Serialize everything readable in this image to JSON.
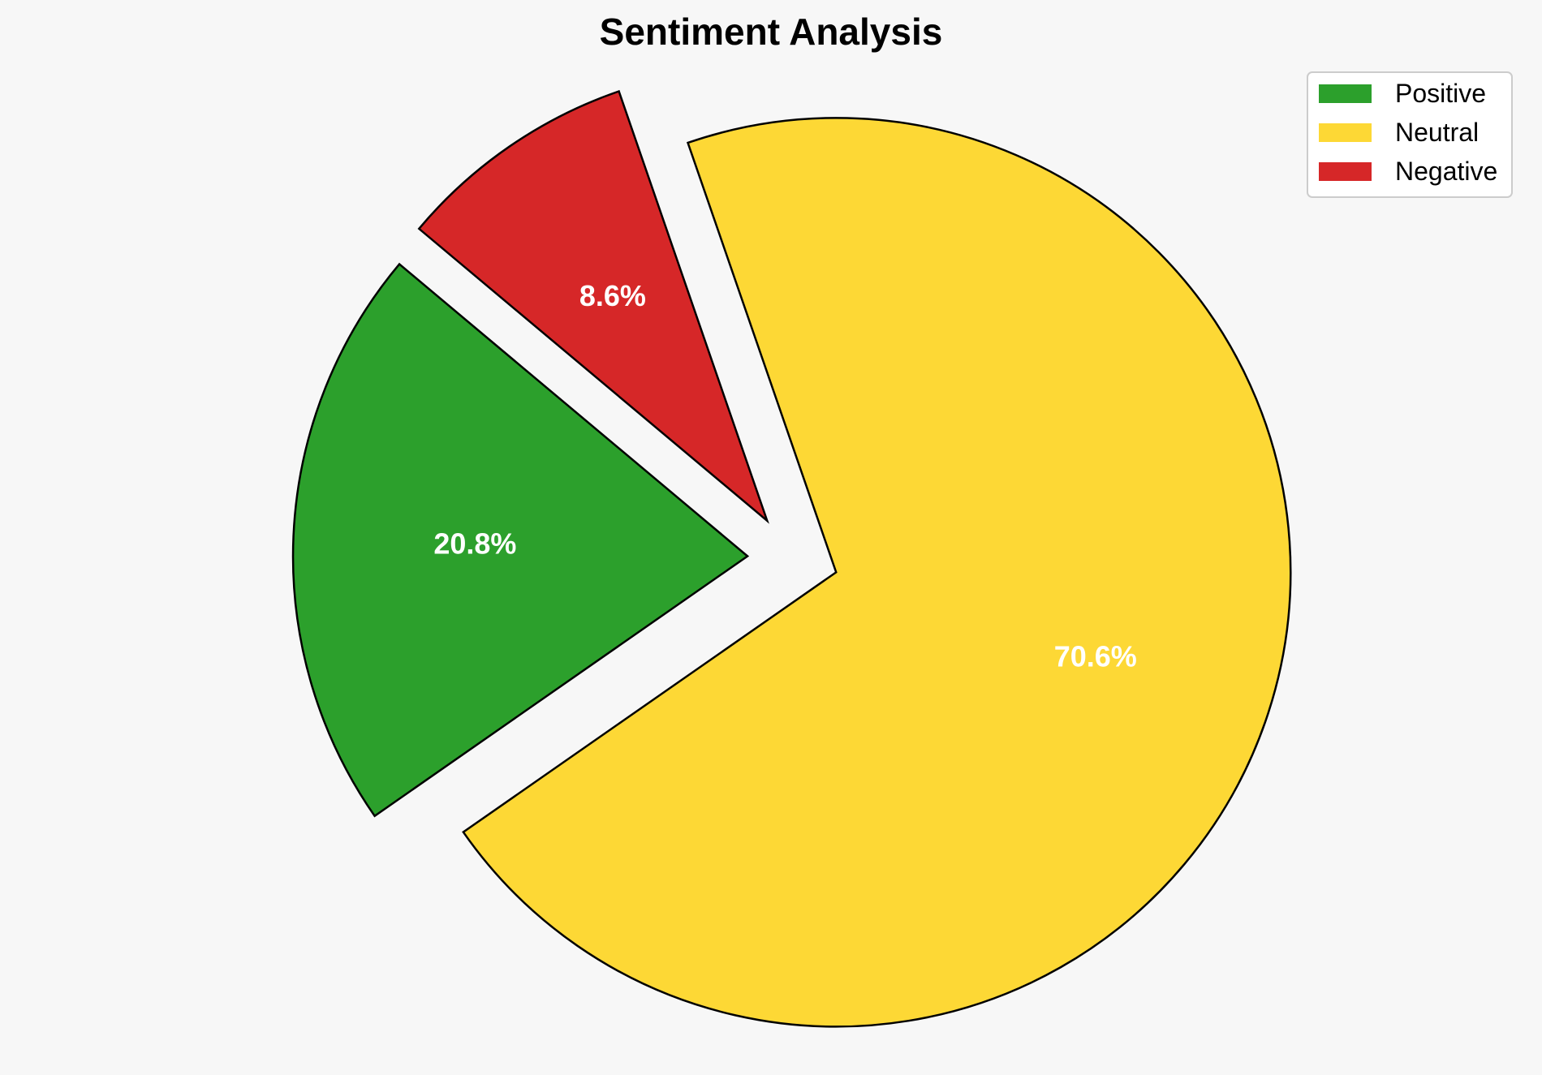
{
  "chart_data": {
    "type": "pie",
    "title": "Sentiment Analysis",
    "slices": [
      {
        "label": "Positive",
        "percent": 20.8,
        "display": "20.8%",
        "color": "#2ca02c",
        "exploded": true
      },
      {
        "label": "Neutral",
        "percent": 70.6,
        "display": "70.6%",
        "color": "#fdd835",
        "exploded": true
      },
      {
        "label": "Negative",
        "percent": 8.6,
        "display": "8.6%",
        "color": "#d62728",
        "exploded": true
      }
    ],
    "start_angle_deg": 140,
    "direction": "counterclockwise",
    "edge_color": "#000000",
    "label_color": "#ffffff",
    "legend": {
      "position": "top-right",
      "entries": [
        "Positive",
        "Neutral",
        "Negative"
      ]
    }
  }
}
